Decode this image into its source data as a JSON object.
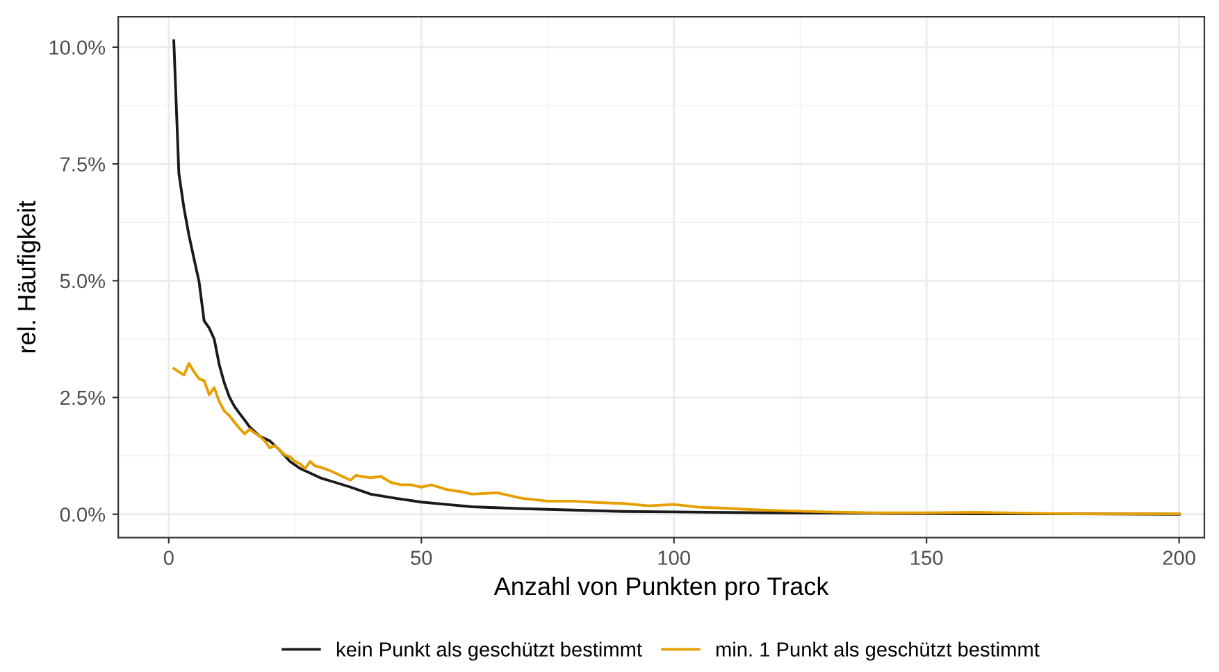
{
  "chart_data": {
    "type": "line",
    "xlabel": "Anzahl von Punkten pro Track",
    "ylabel": "rel. Häufigkeit",
    "xlim": [
      -10,
      205
    ],
    "xticks": [
      0,
      50,
      100,
      150,
      200
    ],
    "ylim": [
      -0.5,
      10.65
    ],
    "yticks": [
      {
        "value": 0,
        "label": "0.0%"
      },
      {
        "value": 2.5,
        "label": "2.5%"
      },
      {
        "value": 5,
        "label": "5.0%"
      },
      {
        "value": 7.5,
        "label": "7.5%"
      },
      {
        "value": 10,
        "label": "10.0%"
      }
    ],
    "grid": true,
    "legend": "bottom",
    "line_style": "solid",
    "series": [
      {
        "name": "kein Punkt als geschützt bestimmt",
        "color": "#1a1a1a",
        "x": [
          1,
          2,
          3,
          4,
          5,
          6,
          7,
          8,
          9,
          10,
          11,
          12,
          13,
          14,
          15,
          16,
          17,
          18,
          20,
          22,
          24,
          26,
          28,
          30,
          33,
          36,
          40,
          45,
          50,
          55,
          60,
          70,
          80,
          90,
          100,
          120,
          140,
          160,
          180,
          200
        ],
        "values": [
          10.14,
          7.3,
          6.56,
          5.97,
          5.47,
          4.98,
          4.14,
          3.99,
          3.75,
          3.2,
          2.81,
          2.51,
          2.31,
          2.16,
          2.02,
          1.87,
          1.77,
          1.67,
          1.57,
          1.37,
          1.13,
          0.98,
          0.88,
          0.78,
          0.68,
          0.58,
          0.43,
          0.34,
          0.26,
          0.21,
          0.16,
          0.12,
          0.09,
          0.06,
          0.05,
          0.03,
          0.02,
          0.01,
          0.01,
          0.0
        ]
      },
      {
        "name": "min. 1 Punkt als geschützt bestimmt",
        "color": "#e69f00",
        "x": [
          1,
          2,
          3,
          4,
          5,
          6,
          7,
          8,
          9,
          10,
          11,
          12,
          13,
          14,
          15,
          16,
          17,
          18,
          19,
          20,
          21,
          22,
          23,
          24,
          25,
          26,
          27,
          28,
          29,
          30,
          32,
          34,
          36,
          37,
          40,
          42,
          44,
          46,
          48,
          50,
          52,
          55,
          58,
          60,
          65,
          70,
          75,
          80,
          85,
          90,
          95,
          100,
          105,
          110,
          115,
          120,
          130,
          140,
          150,
          160,
          170,
          180,
          200
        ],
        "values": [
          3.12,
          3.05,
          2.98,
          3.23,
          3.05,
          2.9,
          2.86,
          2.56,
          2.71,
          2.41,
          2.21,
          2.11,
          1.97,
          1.84,
          1.72,
          1.82,
          1.74,
          1.67,
          1.57,
          1.42,
          1.47,
          1.37,
          1.27,
          1.23,
          1.13,
          1.08,
          0.98,
          1.13,
          1.03,
          1.01,
          0.93,
          0.83,
          0.73,
          0.83,
          0.78,
          0.81,
          0.68,
          0.63,
          0.63,
          0.58,
          0.63,
          0.53,
          0.48,
          0.43,
          0.46,
          0.34,
          0.28,
          0.28,
          0.25,
          0.23,
          0.18,
          0.21,
          0.15,
          0.13,
          0.1,
          0.08,
          0.05,
          0.03,
          0.03,
          0.04,
          0.02,
          0.01,
          0.01
        ]
      }
    ]
  }
}
